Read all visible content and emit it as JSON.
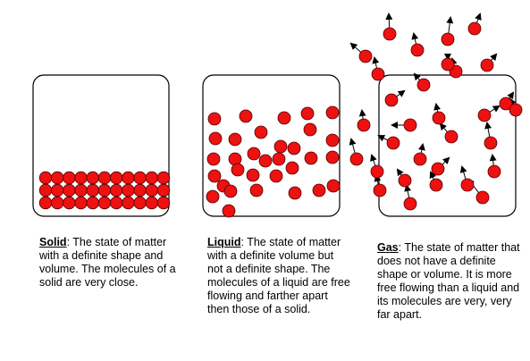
{
  "captions": {
    "solid": {
      "term": "Solid",
      "text": ": The state of matter with a definite shape and volume. The molecules of a solid are very close."
    },
    "liquid": {
      "term": "Liquid",
      "text": ": The state of matter with a definite volume but not a definite shape. The molecules of a liquid are free flowing and farther apart then those of a solid."
    },
    "gas": {
      "term": "Gas",
      "text": ": The state of matter that does not have a definite shape or volume. It is more free flowing than a liquid and its molecules are very, very far apart."
    }
  },
  "colors": {
    "molecule_fill": "#ee1111",
    "molecule_stroke": "#550000",
    "container_stroke": "#000000",
    "arrow": "#000000"
  }
}
